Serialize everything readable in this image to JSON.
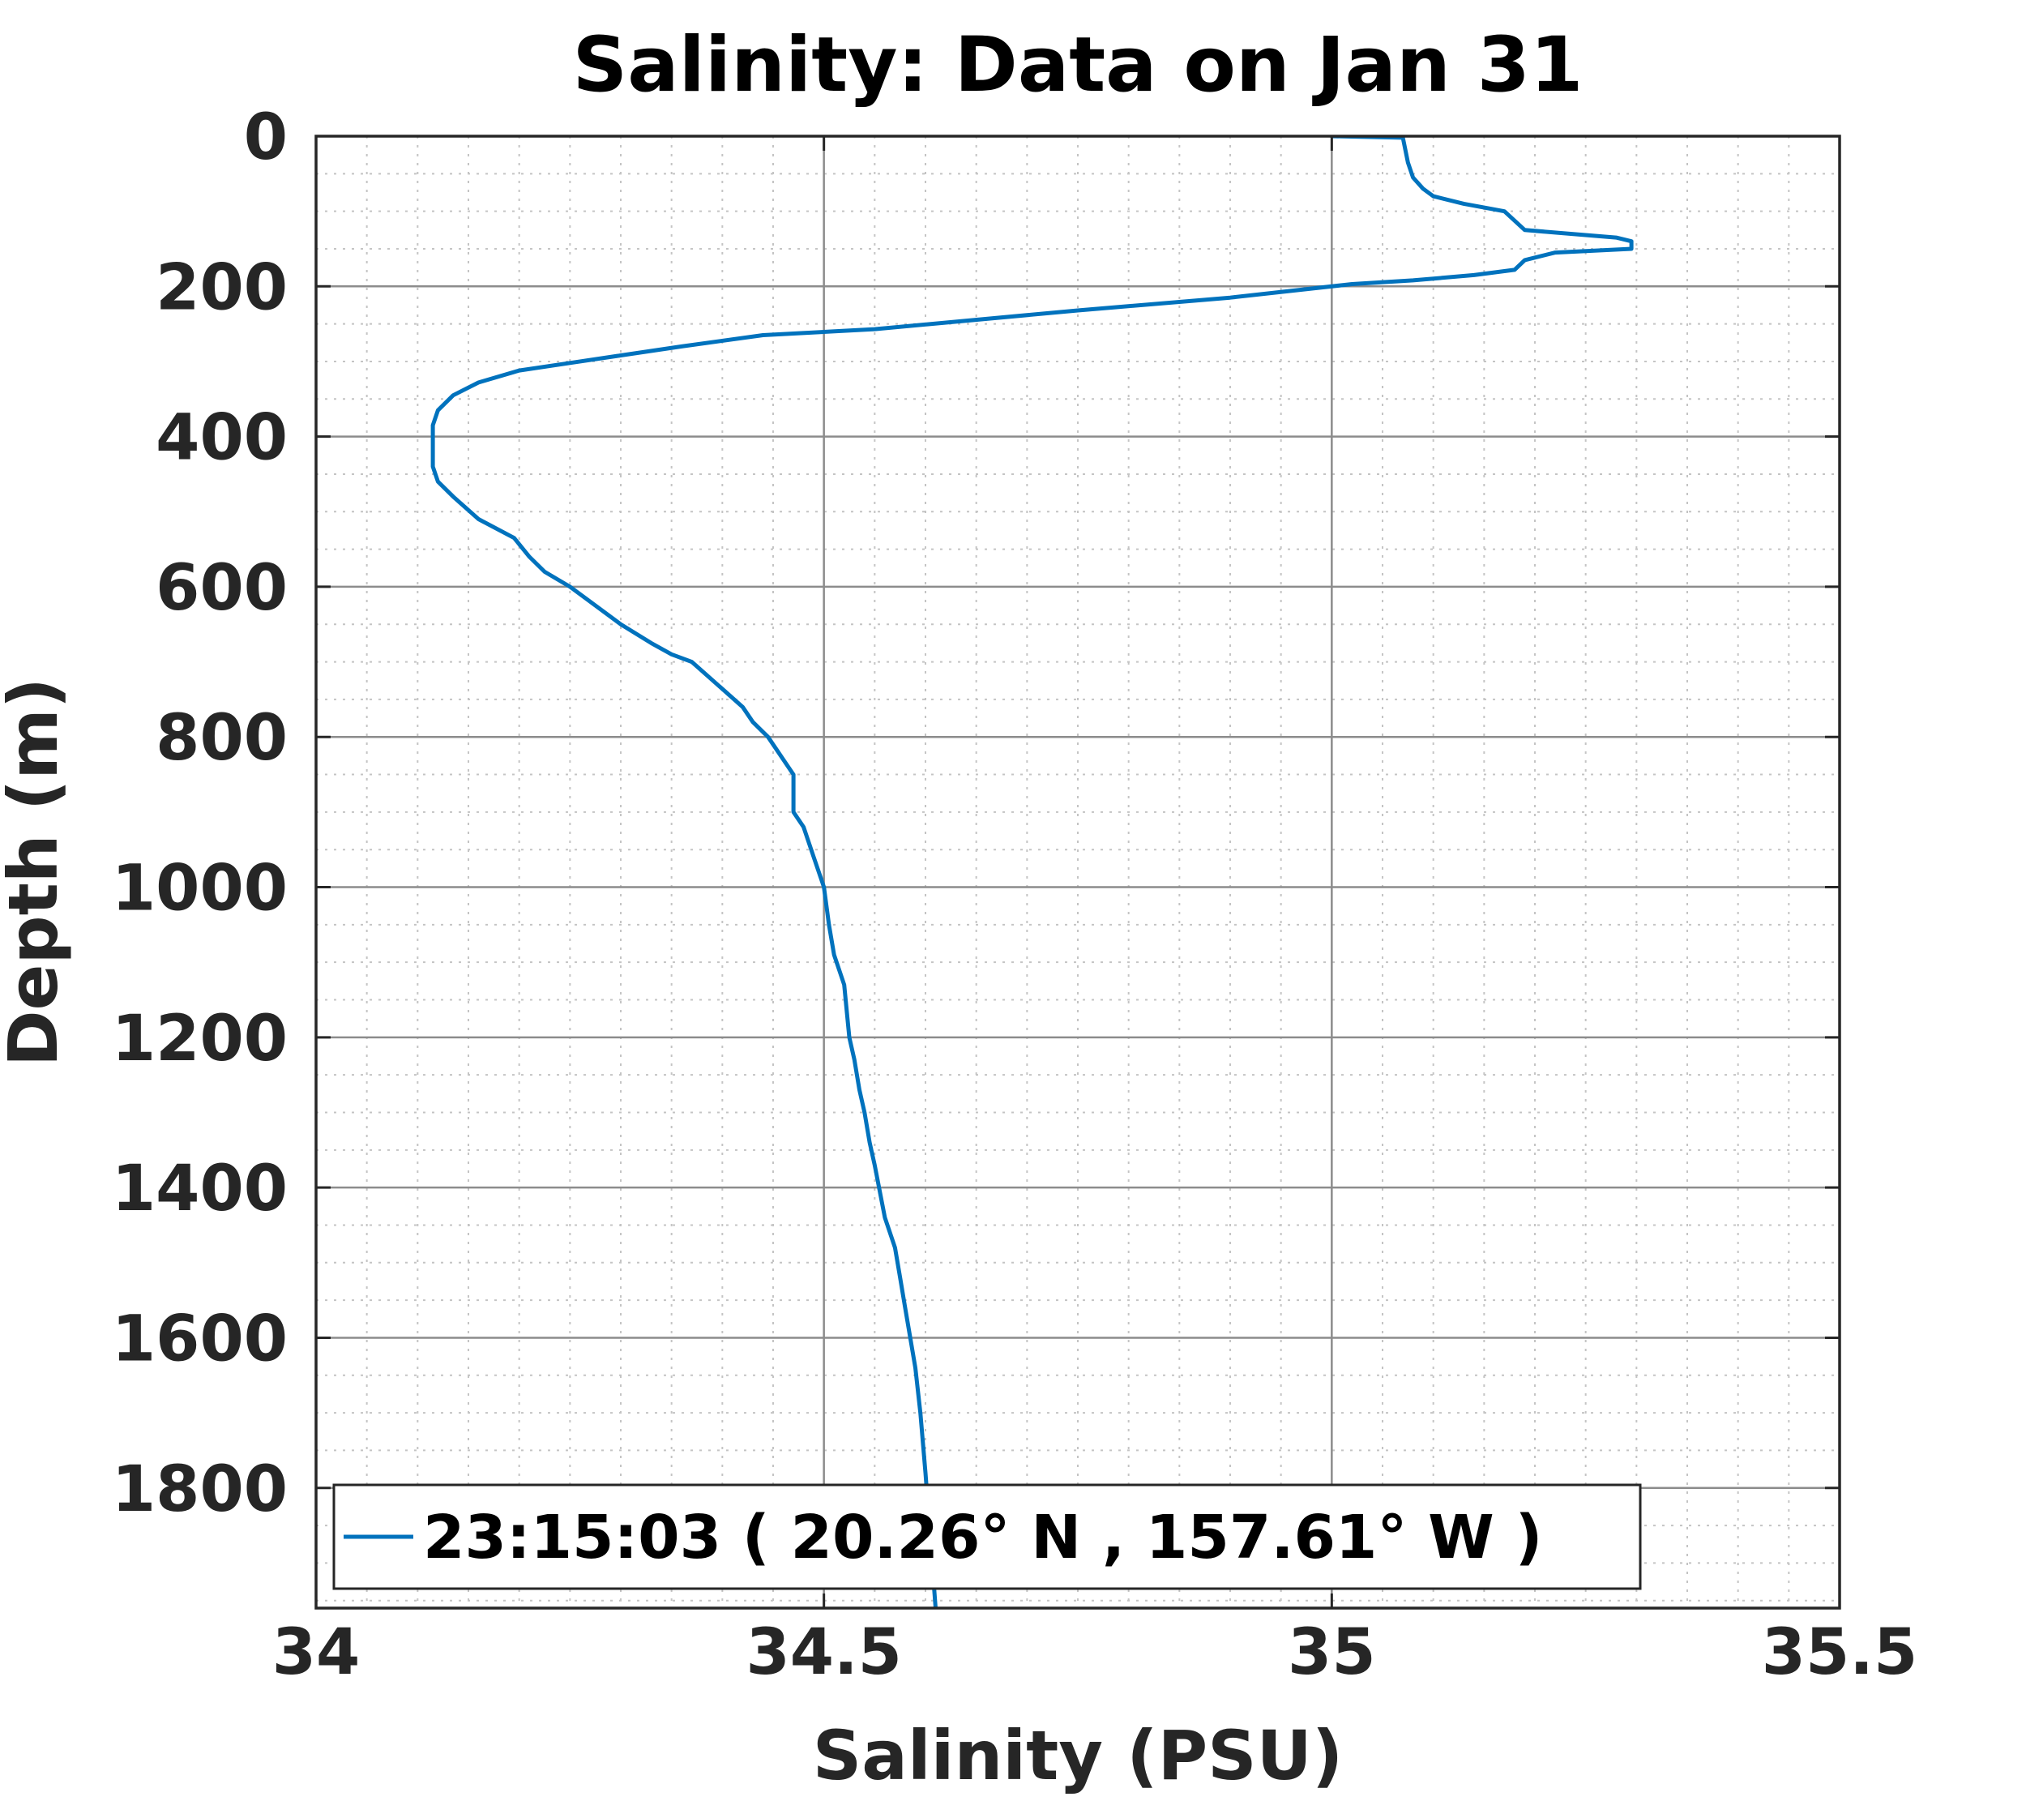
{
  "chart_data": {
    "type": "line",
    "title": "Salinity: Data on Jan 31",
    "xlabel": "Salinity (PSU)",
    "ylabel": "Depth (m)",
    "xlim": [
      34,
      35.5
    ],
    "ylim": [
      0,
      1960
    ],
    "y_reversed": true,
    "x_ticks": [
      "34",
      "34.5",
      "35",
      "35.5"
    ],
    "y_ticks": [
      "0",
      "200",
      "400",
      "600",
      "800",
      "1000",
      "1200",
      "1400",
      "1600",
      "1800"
    ],
    "grid": true,
    "minor_grid": true,
    "legend": {
      "placement": "bottom-left",
      "entries": [
        "23:15:03 ( 20.26° N , 157.61° W )"
      ]
    },
    "series": [
      {
        "name": "23:15:03 ( 20.26° N , 157.61° W )",
        "color": "#0072bd",
        "x": [
          35.0,
          35.07,
          35.075,
          35.08,
          35.09,
          35.1,
          35.13,
          35.17,
          35.19,
          35.28,
          35.295,
          35.295,
          35.22,
          35.19,
          35.18,
          35.14,
          35.08,
          35.02,
          34.9,
          34.75,
          34.55,
          34.44,
          34.36,
          34.3,
          34.25,
          34.2,
          34.16,
          34.135,
          34.12,
          34.115,
          34.115,
          34.115,
          34.12,
          34.135,
          34.16,
          34.195,
          34.21,
          34.225,
          34.25,
          34.265,
          34.3,
          34.33,
          34.35,
          34.37,
          34.42,
          34.43,
          34.445,
          34.46,
          34.47,
          34.47,
          34.48,
          34.49,
          34.5,
          34.505,
          34.51,
          34.52,
          34.525,
          34.53,
          34.535,
          34.54,
          34.545,
          34.55,
          34.56,
          34.57,
          34.575,
          34.58,
          34.585,
          34.59,
          34.595,
          34.6,
          34.61
        ],
        "y": [
          0,
          2,
          35,
          55,
          70,
          80,
          90,
          100,
          125,
          135,
          140,
          150,
          155,
          165,
          178,
          185,
          192,
          197,
          215,
          232,
          257,
          265,
          280,
          292,
          302,
          312,
          328,
          345,
          365,
          385,
          400,
          440,
          460,
          480,
          510,
          535,
          560,
          580,
          600,
          615,
          650,
          675,
          690,
          700,
          760,
          780,
          800,
          830,
          850,
          900,
          920,
          960,
          1000,
          1050,
          1090,
          1130,
          1200,
          1230,
          1270,
          1300,
          1340,
          1370,
          1440,
          1480,
          1520,
          1560,
          1600,
          1640,
          1700,
          1780,
          1960
        ]
      }
    ]
  }
}
